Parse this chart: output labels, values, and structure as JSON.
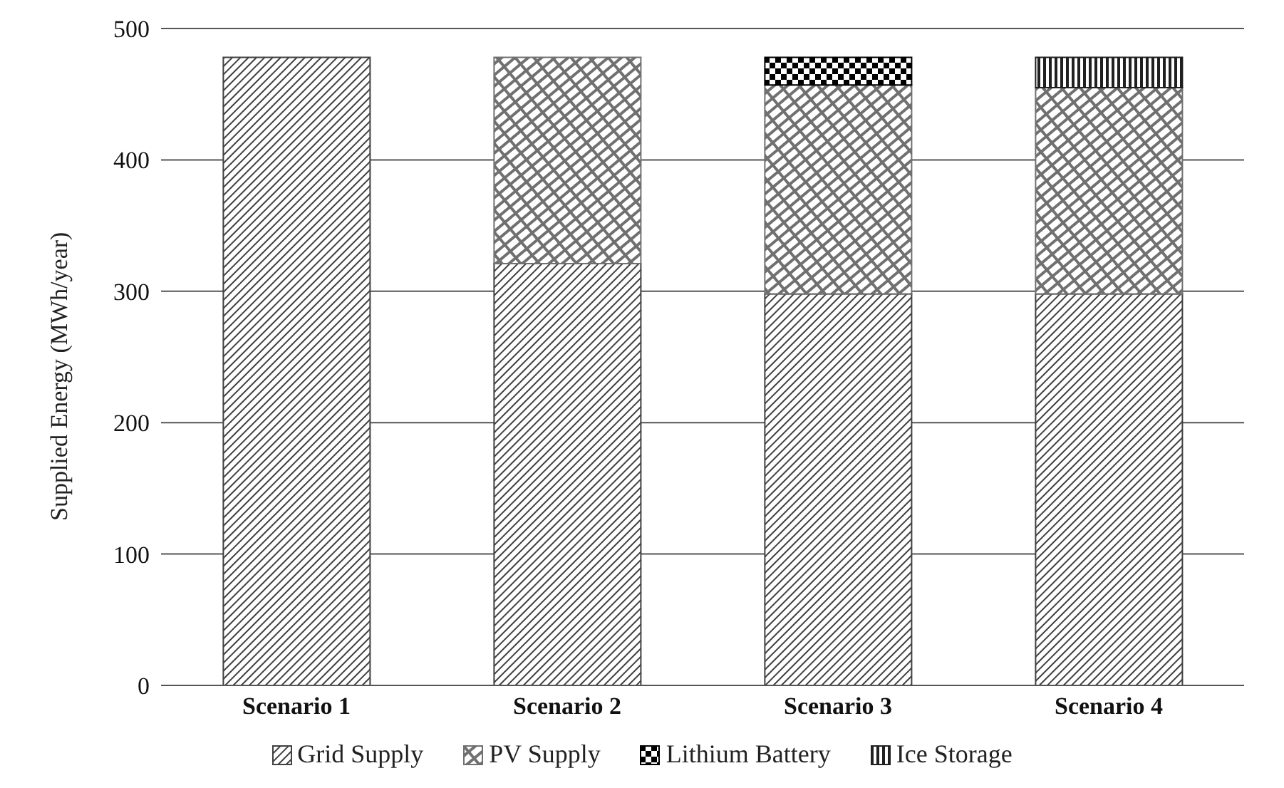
{
  "chart_data": {
    "type": "bar",
    "stacked": true,
    "ylabel": "Supplied Energy (MWh/year)",
    "categories": [
      "Scenario 1",
      "Scenario 2",
      "Scenario 3",
      "Scenario 4"
    ],
    "series": [
      {
        "name": "Grid Supply",
        "color": "#404040",
        "values": [
          478,
          321,
          298,
          298
        ]
      },
      {
        "name": "PV Supply",
        "color": "#707070",
        "values": [
          0,
          157,
          159,
          157
        ]
      },
      {
        "name": "Lithium Battery",
        "color": "#000000",
        "values": [
          0,
          0,
          21,
          0
        ]
      },
      {
        "name": "Ice Storage",
        "color": "#202020",
        "values": [
          0,
          0,
          0,
          23
        ]
      }
    ],
    "ylim": [
      0,
      500
    ],
    "yticks": [
      0,
      100,
      200,
      300,
      400,
      500
    ],
    "grid": "y",
    "legend": "bottom"
  }
}
